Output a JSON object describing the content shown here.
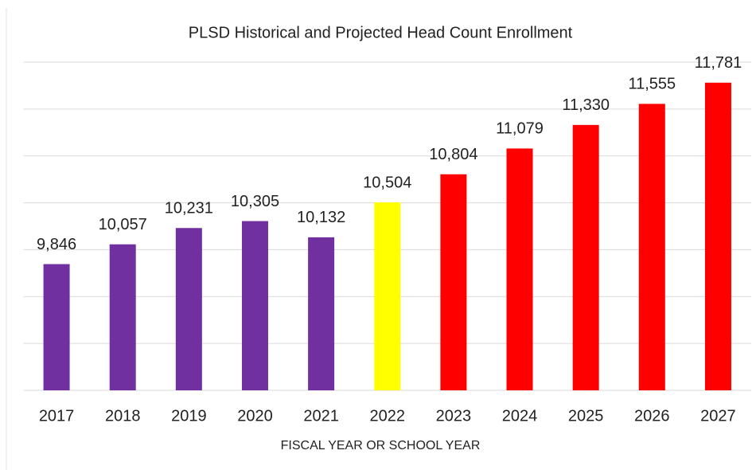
{
  "chart_data": {
    "type": "bar",
    "title": "PLSD Historical and Projected Head Count Enrollment",
    "x_label": "FISCAL YEAR OR SCHOOL YEAR",
    "categories": [
      "2017",
      "2018",
      "2019",
      "2020",
      "2021",
      "2022",
      "2023",
      "2024",
      "2025",
      "2026",
      "2027"
    ],
    "values": [
      9846,
      10057,
      10231,
      10305,
      10132,
      10504,
      10804,
      11079,
      11330,
      11555,
      11781
    ],
    "value_labels": [
      "9,846",
      "10,057",
      "10,231",
      "10,305",
      "10,132",
      "10,504",
      "10,804",
      "11,079",
      "11,330",
      "11,555",
      "11,781"
    ],
    "colors": [
      "#7030a0",
      "#7030a0",
      "#7030a0",
      "#7030a0",
      "#7030a0",
      "#ffff00",
      "#ff0000",
      "#ff0000",
      "#ff0000",
      "#ff0000",
      "#ff0000"
    ],
    "ylim": [
      8500,
      12000
    ],
    "yticks": [
      8500,
      9000,
      9500,
      10000,
      10500,
      11000,
      11500,
      12000
    ],
    "grid": true
  }
}
